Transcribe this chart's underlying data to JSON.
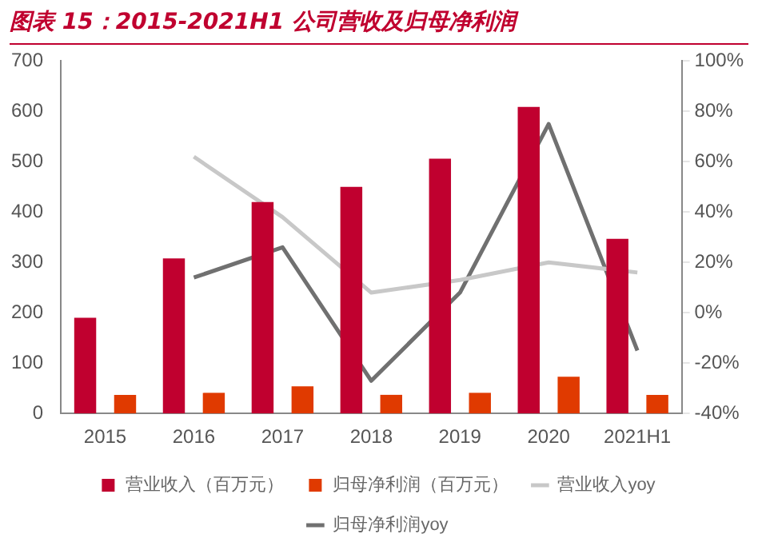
{
  "chart_data": {
    "type": "bar",
    "title": "图表 15：2015-2021H1 公司营收及归母净利润",
    "categories": [
      "2015",
      "2016",
      "2017",
      "2018",
      "2019",
      "2020",
      "2021H1"
    ],
    "series": [
      {
        "name": "营业收入（百万元）",
        "color": "#c0002f",
        "values": [
          190,
          308,
          420,
          450,
          506,
          609,
          347
        ]
      },
      {
        "name": "归母净利润（百万元）",
        "color": "#e03a00",
        "values": [
          37,
          41,
          54,
          37,
          41,
          73,
          37
        ]
      },
      {
        "name": "营业收入yoy",
        "type": "line",
        "axis": "y2",
        "color": "#c8c8c8",
        "values": [
          null,
          62,
          38,
          8,
          13,
          20,
          16
        ]
      },
      {
        "name": "归母净利润yoy",
        "type": "line",
        "axis": "y2",
        "color": "#707070",
        "values": [
          null,
          14,
          26,
          -27,
          8,
          75,
          -15
        ]
      }
    ],
    "ylim": [
      0,
      700
    ],
    "yticks": [
      0,
      100,
      200,
      300,
      400,
      500,
      600,
      700
    ],
    "y2lim": [
      -40,
      100
    ],
    "y2ticks": [
      {
        "value": -40,
        "label": "-40%"
      },
      {
        "value": -20,
        "label": "-20%"
      },
      {
        "value": 0,
        "label": "0%"
      },
      {
        "value": 20,
        "label": "20%"
      },
      {
        "value": 40,
        "label": "40%"
      },
      {
        "value": 60,
        "label": "60%"
      },
      {
        "value": 80,
        "label": "80%"
      },
      {
        "value": 100,
        "label": "100%"
      }
    ],
    "grid": false,
    "legend": "bottom",
    "marker": "none",
    "line_style": "solid"
  }
}
